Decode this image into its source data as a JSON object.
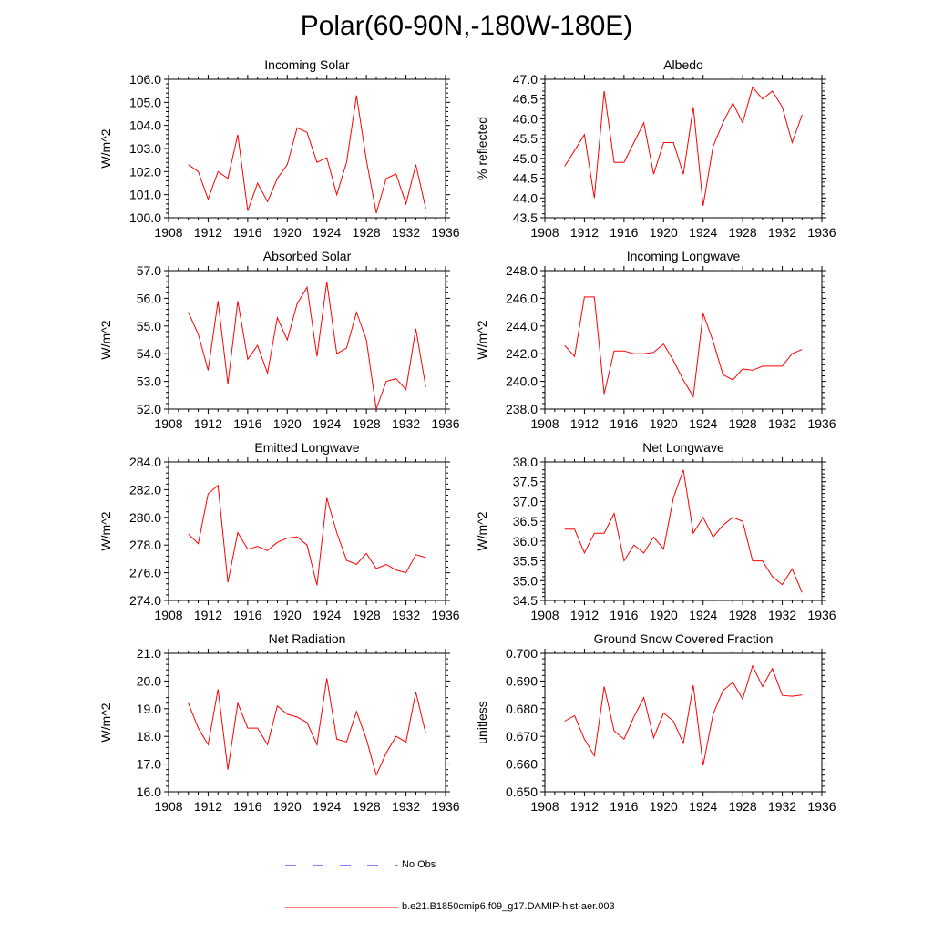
{
  "figure_title": "Polar(60-90N,-180W-180E)",
  "colors": {
    "model_line": "#ff0000",
    "obs_line": "#0000ff",
    "axis": "#000000"
  },
  "legend": [
    {
      "label": "No Obs",
      "style": "dashed",
      "color": "#0000ff"
    },
    {
      "label": "b.e21.B1850cmip6.f09_g17.DAMIP-hist-aer.003",
      "style": "solid",
      "color": "#ff0000"
    }
  ],
  "chart_data": [
    {
      "type": "line",
      "title": "Incoming Solar",
      "ylabel": "W/m^2",
      "xlim": [
        1908,
        1936
      ],
      "ylim": [
        100.0,
        106.0
      ],
      "xticks": [
        "1908",
        "1912",
        "1916",
        "1920",
        "1924",
        "1928",
        "1932",
        "1936"
      ],
      "yticks": [
        "100.0",
        "101.0",
        "102.0",
        "103.0",
        "104.0",
        "105.0",
        "106.0"
      ],
      "x": [
        1910,
        1911,
        1912,
        1913,
        1914,
        1915,
        1916,
        1917,
        1918,
        1919,
        1920,
        1921,
        1922,
        1923,
        1924,
        1925,
        1926,
        1927,
        1928,
        1929,
        1930,
        1931,
        1932,
        1933,
        1934
      ],
      "series": [
        {
          "values": [
            102.3,
            102.0,
            100.8,
            102.0,
            101.7,
            103.6,
            100.3,
            101.5,
            100.7,
            101.7,
            102.3,
            103.9,
            103.7,
            102.4,
            102.6,
            101.0,
            102.4,
            105.3,
            102.5,
            100.2,
            101.7,
            101.9,
            100.6,
            102.3,
            100.4
          ]
        }
      ]
    },
    {
      "type": "line",
      "title": "Albedo",
      "ylabel": "% reflected",
      "xlim": [
        1908,
        1936
      ],
      "ylim": [
        43.5,
        47.0
      ],
      "xticks": [
        "1908",
        "1912",
        "1916",
        "1920",
        "1924",
        "1928",
        "1932",
        "1936"
      ],
      "yticks": [
        "43.5",
        "44.0",
        "44.5",
        "45.0",
        "45.5",
        "46.0",
        "46.5",
        "47.0"
      ],
      "x": [
        1910,
        1911,
        1912,
        1913,
        1914,
        1915,
        1916,
        1917,
        1918,
        1919,
        1920,
        1921,
        1922,
        1923,
        1924,
        1925,
        1926,
        1927,
        1928,
        1929,
        1930,
        1931,
        1932,
        1933,
        1934
      ],
      "series": [
        {
          "values": [
            44.8,
            45.2,
            45.6,
            44.0,
            46.7,
            44.9,
            44.9,
            45.4,
            45.9,
            44.6,
            45.4,
            45.4,
            44.6,
            46.3,
            43.8,
            45.3,
            45.9,
            46.4,
            45.9,
            46.8,
            46.5,
            46.7,
            46.3,
            45.4,
            46.1
          ]
        }
      ]
    },
    {
      "type": "line",
      "title": "Absorbed Solar",
      "ylabel": "W/m^2",
      "xlim": [
        1908,
        1936
      ],
      "ylim": [
        52.0,
        57.0
      ],
      "xticks": [
        "1908",
        "1912",
        "1916",
        "1920",
        "1924",
        "1928",
        "1932",
        "1936"
      ],
      "yticks": [
        "52.0",
        "53.0",
        "54.0",
        "55.0",
        "56.0",
        "57.0"
      ],
      "x": [
        1910,
        1911,
        1912,
        1913,
        1914,
        1915,
        1916,
        1917,
        1918,
        1919,
        1920,
        1921,
        1922,
        1923,
        1924,
        1925,
        1926,
        1927,
        1928,
        1929,
        1930,
        1931,
        1932,
        1933,
        1934
      ],
      "series": [
        {
          "values": [
            55.5,
            54.7,
            53.4,
            55.9,
            52.9,
            55.9,
            53.8,
            54.3,
            53.3,
            55.3,
            54.5,
            55.8,
            56.4,
            53.9,
            56.6,
            54.0,
            54.2,
            55.5,
            54.5,
            52.0,
            53.0,
            53.1,
            52.7,
            54.9,
            52.8
          ]
        }
      ]
    },
    {
      "type": "line",
      "title": "Incoming Longwave",
      "ylabel": "W/m^2",
      "xlim": [
        1908,
        1936
      ],
      "ylim": [
        238.0,
        248.0
      ],
      "xticks": [
        "1908",
        "1912",
        "1916",
        "1920",
        "1924",
        "1928",
        "1932",
        "1936"
      ],
      "yticks": [
        "238.0",
        "240.0",
        "242.0",
        "244.0",
        "246.0",
        "248.0"
      ],
      "x": [
        1910,
        1911,
        1912,
        1913,
        1914,
        1915,
        1916,
        1917,
        1918,
        1919,
        1920,
        1921,
        1922,
        1923,
        1924,
        1925,
        1926,
        1927,
        1928,
        1929,
        1930,
        1931,
        1932,
        1933,
        1934
      ],
      "series": [
        {
          "values": [
            242.6,
            241.8,
            246.1,
            246.1,
            239.1,
            242.2,
            242.2,
            242.0,
            242.0,
            242.1,
            242.7,
            241.5,
            240.1,
            238.9,
            244.9,
            242.9,
            240.5,
            240.1,
            240.9,
            240.8,
            241.1,
            241.1,
            241.1,
            242.0,
            242.3
          ]
        }
      ]
    },
    {
      "type": "line",
      "title": "Emitted Longwave",
      "ylabel": "W/m^2",
      "xlim": [
        1908,
        1936
      ],
      "ylim": [
        274.0,
        284.0
      ],
      "xticks": [
        "1908",
        "1912",
        "1916",
        "1920",
        "1924",
        "1928",
        "1932",
        "1936"
      ],
      "yticks": [
        "274.0",
        "276.0",
        "278.0",
        "280.0",
        "282.0",
        "284.0"
      ],
      "x": [
        1910,
        1911,
        1912,
        1913,
        1914,
        1915,
        1916,
        1917,
        1918,
        1919,
        1920,
        1921,
        1922,
        1923,
        1924,
        1925,
        1926,
        1927,
        1928,
        1929,
        1930,
        1931,
        1932,
        1933,
        1934
      ],
      "series": [
        {
          "values": [
            278.8,
            278.1,
            281.7,
            282.3,
            275.3,
            278.9,
            277.7,
            277.9,
            277.6,
            278.2,
            278.5,
            278.6,
            278.0,
            275.1,
            281.4,
            278.9,
            276.9,
            276.6,
            277.4,
            276.3,
            276.6,
            276.2,
            276.0,
            277.3,
            277.1
          ]
        }
      ]
    },
    {
      "type": "line",
      "title": "Net Longwave",
      "ylabel": "W/m^2",
      "xlim": [
        1908,
        1936
      ],
      "ylim": [
        34.5,
        38.0
      ],
      "xticks": [
        "1908",
        "1912",
        "1916",
        "1920",
        "1924",
        "1928",
        "1932",
        "1936"
      ],
      "yticks": [
        "34.5",
        "35.0",
        "35.5",
        "36.0",
        "36.5",
        "37.0",
        "37.5",
        "38.0"
      ],
      "x": [
        1910,
        1911,
        1912,
        1913,
        1914,
        1915,
        1916,
        1917,
        1918,
        1919,
        1920,
        1921,
        1922,
        1923,
        1924,
        1925,
        1926,
        1927,
        1928,
        1929,
        1930,
        1931,
        1932,
        1933,
        1934
      ],
      "series": [
        {
          "values": [
            36.3,
            36.3,
            35.7,
            36.2,
            36.2,
            36.7,
            35.5,
            35.9,
            35.7,
            36.1,
            35.8,
            37.1,
            37.8,
            36.2,
            36.6,
            36.1,
            36.4,
            36.6,
            36.5,
            35.5,
            35.5,
            35.1,
            34.9,
            35.3,
            34.7
          ]
        }
      ]
    },
    {
      "type": "line",
      "title": "Net Radiation",
      "ylabel": "W/m^2",
      "xlim": [
        1908,
        1936
      ],
      "ylim": [
        16.0,
        21.0
      ],
      "xticks": [
        "1908",
        "1912",
        "1916",
        "1920",
        "1924",
        "1928",
        "1932",
        "1936"
      ],
      "yticks": [
        "16.0",
        "17.0",
        "18.0",
        "19.0",
        "20.0",
        "21.0"
      ],
      "x": [
        1910,
        1911,
        1912,
        1913,
        1914,
        1915,
        1916,
        1917,
        1918,
        1919,
        1920,
        1921,
        1922,
        1923,
        1924,
        1925,
        1926,
        1927,
        1928,
        1929,
        1930,
        1931,
        1932,
        1933,
        1934
      ],
      "series": [
        {
          "values": [
            19.2,
            18.3,
            17.7,
            19.7,
            16.8,
            19.2,
            18.3,
            18.3,
            17.7,
            19.1,
            18.8,
            18.7,
            18.5,
            17.7,
            20.1,
            17.9,
            17.8,
            18.9,
            17.9,
            16.6,
            17.4,
            18.0,
            17.8,
            19.6,
            18.1
          ]
        }
      ]
    },
    {
      "type": "line",
      "title": "Ground Snow Covered Fraction",
      "ylabel": "unitless",
      "xlim": [
        1908,
        1936
      ],
      "ylim": [
        0.65,
        0.7
      ],
      "xticks": [
        "1908",
        "1912",
        "1916",
        "1920",
        "1924",
        "1928",
        "1932",
        "1936"
      ],
      "yticks": [
        "0.650",
        "0.660",
        "0.670",
        "0.680",
        "0.690",
        "0.700"
      ],
      "x": [
        1910,
        1911,
        1912,
        1913,
        1914,
        1915,
        1916,
        1917,
        1918,
        1919,
        1920,
        1921,
        1922,
        1923,
        1924,
        1925,
        1926,
        1927,
        1928,
        1929,
        1930,
        1931,
        1932,
        1933,
        1934
      ],
      "series": [
        {
          "values": [
            0.6755,
            0.6775,
            0.669,
            0.663,
            0.688,
            0.672,
            0.669,
            0.677,
            0.684,
            0.6695,
            0.6785,
            0.6755,
            0.6675,
            0.6885,
            0.6595,
            0.678,
            0.6865,
            0.6895,
            0.6835,
            0.6955,
            0.688,
            0.6945,
            0.6848,
            0.6845,
            0.685
          ]
        }
      ]
    }
  ]
}
